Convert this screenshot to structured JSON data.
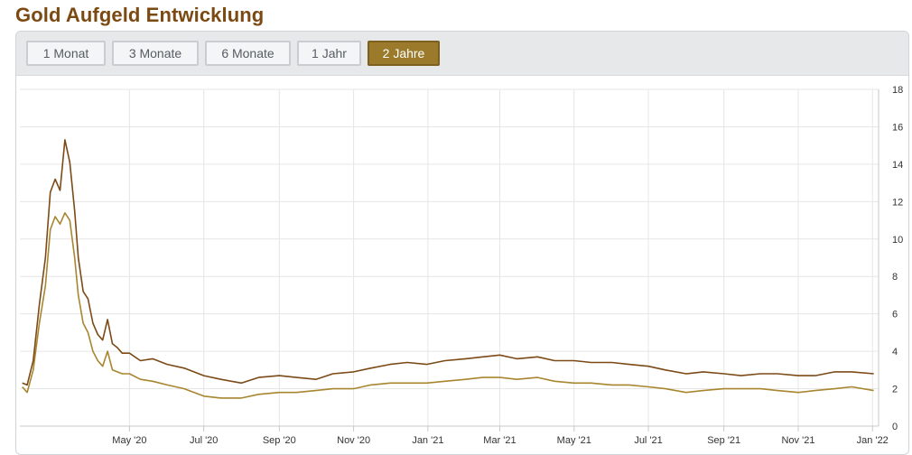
{
  "page_title": "Gold Aufgeld Entwicklung",
  "range_buttons": [
    {
      "label": "1 Monat",
      "active": false
    },
    {
      "label": "3 Monate",
      "active": false
    },
    {
      "label": "6 Monate",
      "active": false
    },
    {
      "label": "1 Jahr",
      "active": false
    },
    {
      "label": "2 Jahre",
      "active": true
    }
  ],
  "colors": {
    "title": "#7a4a12",
    "series_dark": "#7b4a16",
    "series_light": "#a8862f",
    "active_button": "#9c7a2c"
  },
  "chart_data": {
    "type": "line",
    "title": "",
    "xlabel": "",
    "ylabel": "",
    "x_tick_labels": [
      "May '20",
      "Jul '20",
      "Sep '20",
      "Nov '20",
      "Jan '21",
      "Mar '21",
      "May '21",
      "Jul '21",
      "Sep '21",
      "Nov '21",
      "Jan '22"
    ],
    "x_tick_dates": [
      "2020-05-01",
      "2020-07-01",
      "2020-09-01",
      "2020-11-01",
      "2021-01-01",
      "2021-03-01",
      "2021-05-01",
      "2021-07-01",
      "2021-09-01",
      "2021-11-01",
      "2022-01-01"
    ],
    "ylim": [
      0,
      18
    ],
    "y_ticks": [
      0,
      2,
      4,
      6,
      8,
      10,
      12,
      14,
      16,
      18
    ],
    "y_axis_side": "right",
    "grid": true,
    "legend": "none",
    "series": [
      {
        "color": "#7b4a16",
        "x": [
          "2020-02-03",
          "2020-02-07",
          "2020-02-12",
          "2020-02-17",
          "2020-02-22",
          "2020-02-26",
          "2020-03-01",
          "2020-03-05",
          "2020-03-09",
          "2020-03-13",
          "2020-03-17",
          "2020-03-20",
          "2020-03-24",
          "2020-03-28",
          "2020-04-01",
          "2020-04-05",
          "2020-04-09",
          "2020-04-13",
          "2020-04-17",
          "2020-04-21",
          "2020-04-25",
          "2020-05-01",
          "2020-05-10",
          "2020-05-20",
          "2020-06-01",
          "2020-06-15",
          "2020-07-01",
          "2020-07-15",
          "2020-08-01",
          "2020-08-15",
          "2020-09-01",
          "2020-09-15",
          "2020-10-01",
          "2020-10-15",
          "2020-11-01",
          "2020-11-15",
          "2020-12-01",
          "2020-12-15",
          "2020-12-31",
          "2021-01-15",
          "2021-02-01",
          "2021-02-15",
          "2021-03-01",
          "2021-03-15",
          "2021-04-01",
          "2021-04-15",
          "2021-05-01",
          "2021-05-15",
          "2021-06-01",
          "2021-06-15",
          "2021-07-01",
          "2021-07-15",
          "2021-08-01",
          "2021-08-15",
          "2021-09-01",
          "2021-09-15",
          "2021-10-01",
          "2021-10-15",
          "2021-11-01",
          "2021-11-15",
          "2021-12-01",
          "2021-12-15",
          "2022-01-02"
        ],
        "values": [
          2.3,
          2.2,
          3.5,
          6.5,
          9.0,
          12.5,
          13.2,
          12.6,
          15.3,
          14.1,
          11.5,
          9.0,
          7.2,
          6.8,
          5.5,
          4.9,
          4.6,
          5.7,
          4.4,
          4.2,
          3.9,
          3.9,
          3.5,
          3.6,
          3.3,
          3.1,
          2.7,
          2.5,
          2.3,
          2.6,
          2.7,
          2.6,
          2.5,
          2.8,
          2.9,
          3.1,
          3.3,
          3.4,
          3.3,
          3.5,
          3.6,
          3.7,
          3.8,
          3.6,
          3.7,
          3.5,
          3.5,
          3.4,
          3.4,
          3.3,
          3.2,
          3.0,
          2.8,
          2.9,
          2.8,
          2.7,
          2.8,
          2.8,
          2.7,
          2.7,
          2.9,
          2.9,
          2.8
        ]
      },
      {
        "color": "#a8862f",
        "x": [
          "2020-02-03",
          "2020-02-07",
          "2020-02-12",
          "2020-02-17",
          "2020-02-22",
          "2020-02-26",
          "2020-03-01",
          "2020-03-05",
          "2020-03-09",
          "2020-03-13",
          "2020-03-17",
          "2020-03-20",
          "2020-03-24",
          "2020-03-28",
          "2020-04-01",
          "2020-04-05",
          "2020-04-09",
          "2020-04-13",
          "2020-04-17",
          "2020-04-21",
          "2020-04-25",
          "2020-05-01",
          "2020-05-10",
          "2020-05-20",
          "2020-06-01",
          "2020-06-15",
          "2020-07-01",
          "2020-07-15",
          "2020-08-01",
          "2020-08-15",
          "2020-09-01",
          "2020-09-15",
          "2020-10-01",
          "2020-10-15",
          "2020-11-01",
          "2020-11-15",
          "2020-12-01",
          "2020-12-15",
          "2020-12-31",
          "2021-01-15",
          "2021-02-01",
          "2021-02-15",
          "2021-03-01",
          "2021-03-15",
          "2021-04-01",
          "2021-04-15",
          "2021-05-01",
          "2021-05-15",
          "2021-06-01",
          "2021-06-15",
          "2021-07-01",
          "2021-07-15",
          "2021-08-01",
          "2021-08-15",
          "2021-09-01",
          "2021-09-15",
          "2021-10-01",
          "2021-10-15",
          "2021-11-01",
          "2021-11-15",
          "2021-12-01",
          "2021-12-15",
          "2022-01-02"
        ],
        "values": [
          2.1,
          1.8,
          3.0,
          5.5,
          7.5,
          10.5,
          11.2,
          10.8,
          11.4,
          11.0,
          9.0,
          7.0,
          5.5,
          5.0,
          4.0,
          3.5,
          3.2,
          4.0,
          3.0,
          2.9,
          2.8,
          2.8,
          2.5,
          2.4,
          2.2,
          2.0,
          1.6,
          1.5,
          1.5,
          1.7,
          1.8,
          1.8,
          1.9,
          2.0,
          2.0,
          2.2,
          2.3,
          2.3,
          2.3,
          2.4,
          2.5,
          2.6,
          2.6,
          2.5,
          2.6,
          2.4,
          2.3,
          2.3,
          2.2,
          2.2,
          2.1,
          2.0,
          1.8,
          1.9,
          2.0,
          2.0,
          2.0,
          1.9,
          1.8,
          1.9,
          2.0,
          2.1,
          1.9
        ]
      }
    ]
  }
}
